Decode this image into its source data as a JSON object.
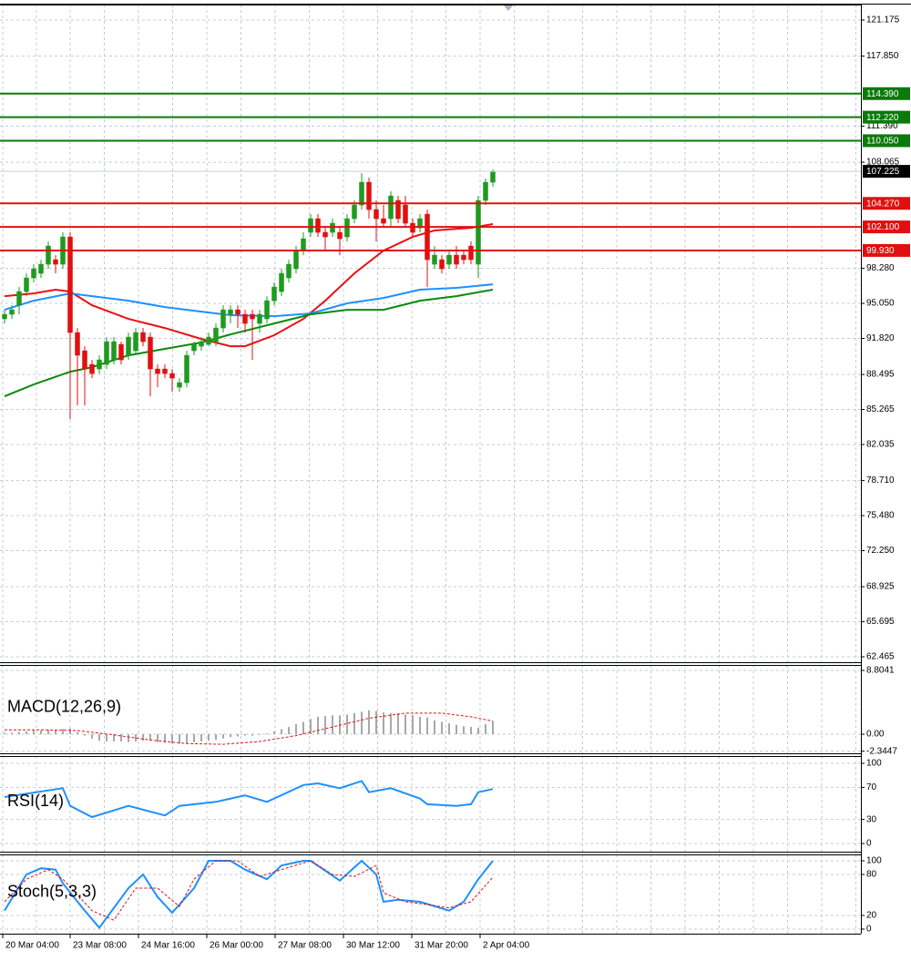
{
  "chart_data": [
    {
      "type": "candlestick",
      "xlim": [
        -0.625,
        117.5
      ],
      "ylim": [
        61.961,
        122.603
      ],
      "grid": true,
      "up_color": "#1f9a1f",
      "down_color": "#e01010",
      "open": [
        93.62,
        94.04,
        94.88,
        96.14,
        97.4,
        97.82,
        98.66,
        99.08,
        98.66,
        101.18,
        92.36,
        90.68,
        89.42,
        89.0,
        89.42,
        89.84,
        91.27,
        90.26,
        90.68,
        92.36,
        91.94,
        89.0,
        89.0,
        88.58,
        87.32,
        87.74,
        90.68,
        91.1,
        91.27,
        91.52,
        92.78,
        94.04,
        94.46,
        94.04,
        94.04,
        93.2,
        93.62,
        95.3,
        96.14,
        97.4,
        98.24,
        99.92,
        101.6,
        102.86,
        101.6,
        101.6,
        101.6,
        101.18,
        102.86,
        104.12,
        106.22,
        103.7,
        102.86,
        102.86,
        104.54,
        104.12,
        102.44,
        102.02,
        103.28,
        98.66,
        99.08,
        98.66,
        99.5,
        99.5,
        100.34,
        98.66,
        104.54,
        106.22
      ],
      "high": [
        94.46,
        94.88,
        96.56,
        97.82,
        98.66,
        99.08,
        100.76,
        99.5,
        101.6,
        101.6,
        92.78,
        91.1,
        89.84,
        90.26,
        91.94,
        91.94,
        91.52,
        92.36,
        92.78,
        92.78,
        92.36,
        89.42,
        89.42,
        89.0,
        88.16,
        90.68,
        91.52,
        91.94,
        92.36,
        93.2,
        94.88,
        94.88,
        94.88,
        94.46,
        94.46,
        94.46,
        95.72,
        96.98,
        98.24,
        99.08,
        100.34,
        101.6,
        103.28,
        103.28,
        102.02,
        102.86,
        102.02,
        103.28,
        104.54,
        107.06,
        106.64,
        104.54,
        104.12,
        105.38,
        104.96,
        104.96,
        102.86,
        103.28,
        103.7,
        100.34,
        99.5,
        99.92,
        100.34,
        99.92,
        100.76,
        104.96,
        106.56,
        107.4
      ],
      "low": [
        93.2,
        93.62,
        94.04,
        95.72,
        96.98,
        97.4,
        98.24,
        97.82,
        98.24,
        84.38,
        85.64,
        85.64,
        88.16,
        88.58,
        89.0,
        89.42,
        89.42,
        89.84,
        90.26,
        91.1,
        86.48,
        87.32,
        88.16,
        86.9,
        86.9,
        87.32,
        90.26,
        90.68,
        91.1,
        91.1,
        92.36,
        93.2,
        92.78,
        92.36,
        89.84,
        92.36,
        93.2,
        94.88,
        95.72,
        96.98,
        97.82,
        99.5,
        101.18,
        101.18,
        99.92,
        101.18,
        99.5,
        100.76,
        102.44,
        103.7,
        102.86,
        100.76,
        102.02,
        102.02,
        102.44,
        102.02,
        101.18,
        101.6,
        96.56,
        98.24,
        97.82,
        98.24,
        98.24,
        98.66,
        98.66,
        97.4,
        104.12,
        105.8
      ],
      "close": [
        94.04,
        94.46,
        96.14,
        97.4,
        98.24,
        98.66,
        100.34,
        98.66,
        101.18,
        92.36,
        90.26,
        89.0,
        88.58,
        89.84,
        91.52,
        91.52,
        89.84,
        91.94,
        92.36,
        91.52,
        89.0,
        88.58,
        88.58,
        88.16,
        87.74,
        90.26,
        91.27,
        91.52,
        91.94,
        92.78,
        94.46,
        94.46,
        94.04,
        93.2,
        93.62,
        94.04,
        95.3,
        96.56,
        97.82,
        98.66,
        99.92,
        101.01,
        102.86,
        101.6,
        101.18,
        102.44,
        101.01,
        102.86,
        104.12,
        106.22,
        103.7,
        102.86,
        102.44,
        104.96,
        102.86,
        102.44,
        101.6,
        102.86,
        99.08,
        99.5,
        98.24,
        99.5,
        98.66,
        99.08,
        99.08,
        104.54,
        106.22,
        107.225
      ],
      "series": [
        {
          "color": "#e81010",
          "x": [
            0,
            4,
            7,
            9,
            12,
            17,
            22,
            27,
            31,
            33,
            37,
            41,
            44,
            48,
            52,
            56,
            59,
            64,
            67
          ],
          "values": [
            95.72,
            95.97,
            96.31,
            96.14,
            94.88,
            93.62,
            92.78,
            91.77,
            91.1,
            91.1,
            92.11,
            93.62,
            95.3,
            97.82,
            99.92,
            101.18,
            101.77,
            102.02,
            102.36
          ]
        },
        {
          "color": "#1e90ff",
          "x": [
            0,
            4,
            9,
            12,
            17,
            22,
            27,
            31,
            37,
            42,
            47,
            52,
            57,
            62,
            67
          ],
          "values": [
            94.46,
            95.3,
            95.97,
            95.72,
            95.3,
            94.71,
            94.29,
            93.96,
            93.87,
            94.12,
            95.05,
            95.55,
            96.31,
            96.48,
            96.81
          ]
        },
        {
          "color": "#0a8a0a",
          "x": [
            0,
            4,
            9,
            12,
            17,
            22,
            27,
            31,
            37,
            42,
            47,
            52,
            57,
            62,
            67
          ],
          "values": [
            86.48,
            87.57,
            88.75,
            89.17,
            90.26,
            90.85,
            91.44,
            92.19,
            93.2,
            94.04,
            94.46,
            94.46,
            95.3,
            95.72,
            96.31
          ]
        }
      ],
      "levels": [
        {
          "value": 114.39,
          "label": "114.390",
          "color": "#0a7a0a"
        },
        {
          "value": 112.22,
          "label": "112.220",
          "color": "#0a7a0a"
        },
        {
          "value": 110.05,
          "label": "110.050",
          "color": "#0a7a0a"
        },
        {
          "value": 104.27,
          "label": "104.270",
          "color": "#e01010"
        },
        {
          "value": 102.1,
          "label": "102.100",
          "color": "#e01010"
        },
        {
          "value": 99.93,
          "label": "99.930",
          "color": "#e01010"
        }
      ],
      "current_price": 107.225,
      "yticks": [
        121.175,
        {
          "value": 117.85,
          "label": "117.850"
        },
        {
          "value": 111.39,
          "label": "111.390"
        },
        108.065,
        {
          "value": 98.28,
          "label": "98.280"
        },
        {
          "value": 95.05,
          "label": "95.050"
        },
        {
          "value": 91.82,
          "label": "91.820"
        },
        88.495,
        85.265,
        82.035,
        {
          "value": 78.71,
          "label": "78.710"
        },
        {
          "value": 75.48,
          "label": "75.480"
        },
        {
          "value": 72.25,
          "label": "72.250"
        },
        68.925,
        65.695,
        62.465
      ]
    },
    {
      "type": "macd",
      "title": "MACD(12,26,9)",
      "xlim": [
        -0.625,
        117.5
      ],
      "ylim": [
        -2.64,
        9.559
      ],
      "grid": true,
      "bar_color": "#a8a8a8",
      "bars": [
        0.2,
        0.2,
        0.3,
        0.4,
        0.5,
        0.5,
        0.6,
        0.6,
        0.7,
        0.8,
        0.3,
        -0.2,
        -0.6,
        -0.9,
        -1.0,
        -1.0,
        -1.0,
        -1.1,
        -1.0,
        -0.9,
        -0.9,
        -1.1,
        -1.2,
        -1.3,
        -1.3,
        -1.3,
        -1.1,
        -1.0,
        -0.9,
        -0.8,
        -0.6,
        -0.4,
        -0.3,
        -0.2,
        -0.2,
        -0.1,
        0.1,
        0.4,
        0.7,
        1.0,
        1.4,
        1.7,
        2.1,
        2.4,
        2.5,
        2.6,
        2.6,
        2.7,
        2.9,
        3.1,
        3.3,
        3.2,
        3.0,
        2.9,
        2.9,
        2.7,
        2.6,
        2.4,
        2.3,
        1.9,
        1.7,
        1.5,
        1.3,
        1.1,
        1.0,
        0.9,
        1.4,
        1.8
      ],
      "series": [
        {
          "color": "#e01010",
          "dashed": true,
          "x": [
            0,
            5,
            10,
            15,
            20,
            25,
            30,
            35,
            40,
            45,
            50,
            55,
            60,
            64,
            67
          ],
          "values": [
            0.6,
            0.6,
            0.5,
            -0.1,
            -0.8,
            -1.3,
            -1.4,
            -1.0,
            -0.2,
            1.0,
            2.2,
            2.9,
            2.9,
            2.4,
            1.8
          ]
        }
      ],
      "yticks": [
        8.8041,
        {
          "value": 0,
          "label": "0.00"
        },
        -2.3447
      ]
    },
    {
      "type": "line",
      "title": "RSI(14)",
      "xlim": [
        -0.625,
        117.5
      ],
      "ylim": [
        -10.2,
        109.1
      ],
      "grid": true,
      "series": [
        {
          "color": "#1e90ff",
          "x": [
            0,
            8,
            9,
            12,
            17,
            22,
            24,
            29,
            33,
            36,
            41,
            43,
            46,
            49,
            50,
            53,
            57,
            58,
            62,
            64,
            65,
            67
          ],
          "values": [
            58,
            69,
            47,
            33,
            47,
            35,
            47,
            52,
            60,
            52,
            73,
            75,
            69,
            78,
            64,
            69,
            56,
            49,
            47,
            49,
            64,
            68
          ]
        }
      ],
      "yticks": [
        100,
        70,
        30,
        0
      ]
    },
    {
      "type": "line",
      "title": "Stoch(5,3,3)",
      "xlim": [
        -0.625,
        117.5
      ],
      "ylim": [
        -6.7,
        109.3
      ],
      "grid": true,
      "series": [
        {
          "color": "#1e90ff",
          "x": [
            0,
            3,
            5,
            7,
            8,
            11,
            13,
            17,
            19,
            21,
            23,
            26,
            28,
            31,
            33,
            36,
            38,
            41,
            42,
            46,
            49,
            51,
            52,
            54,
            57,
            61,
            63,
            65,
            67
          ],
          "values": [
            27,
            80,
            89,
            87,
            67,
            27,
            2,
            60,
            80,
            47,
            24,
            60,
            100,
            100,
            87,
            73,
            93,
            100,
            100,
            71,
            100,
            80,
            40,
            43,
            40,
            27,
            40,
            73,
            100
          ]
        },
        {
          "color": "#e01010",
          "dashed": true,
          "x": [
            0,
            3,
            6,
            8,
            12,
            15,
            18,
            21,
            24,
            26,
            29,
            32,
            35,
            38,
            42,
            45,
            48,
            51,
            52,
            55,
            58,
            61,
            64,
            67
          ],
          "values": [
            40,
            73,
            87,
            73,
            27,
            13,
            60,
            60,
            33,
            73,
            100,
            100,
            77,
            87,
            100,
            80,
            77,
            93,
            53,
            40,
            36,
            31,
            40,
            76
          ]
        }
      ],
      "yticks": [
        100,
        80,
        20,
        0
      ],
      "xticks": [
        {
          "value": -0.25,
          "label": "20 Mar 04:00"
        },
        {
          "value": 9,
          "label": "23 Mar 08:00"
        },
        {
          "value": 18.375,
          "label": "24 Mar 16:00"
        },
        {
          "value": 27.75,
          "label": "26 Mar 00:00"
        },
        {
          "value": 37.125,
          "label": "27 Mar 08:00"
        },
        {
          "value": 46.5,
          "label": "30 Mar 12:00"
        },
        {
          "value": 55.875,
          "label": "31 Mar 20:00"
        },
        {
          "value": 65.25,
          "label": "2 Apr 04:00"
        }
      ]
    }
  ]
}
